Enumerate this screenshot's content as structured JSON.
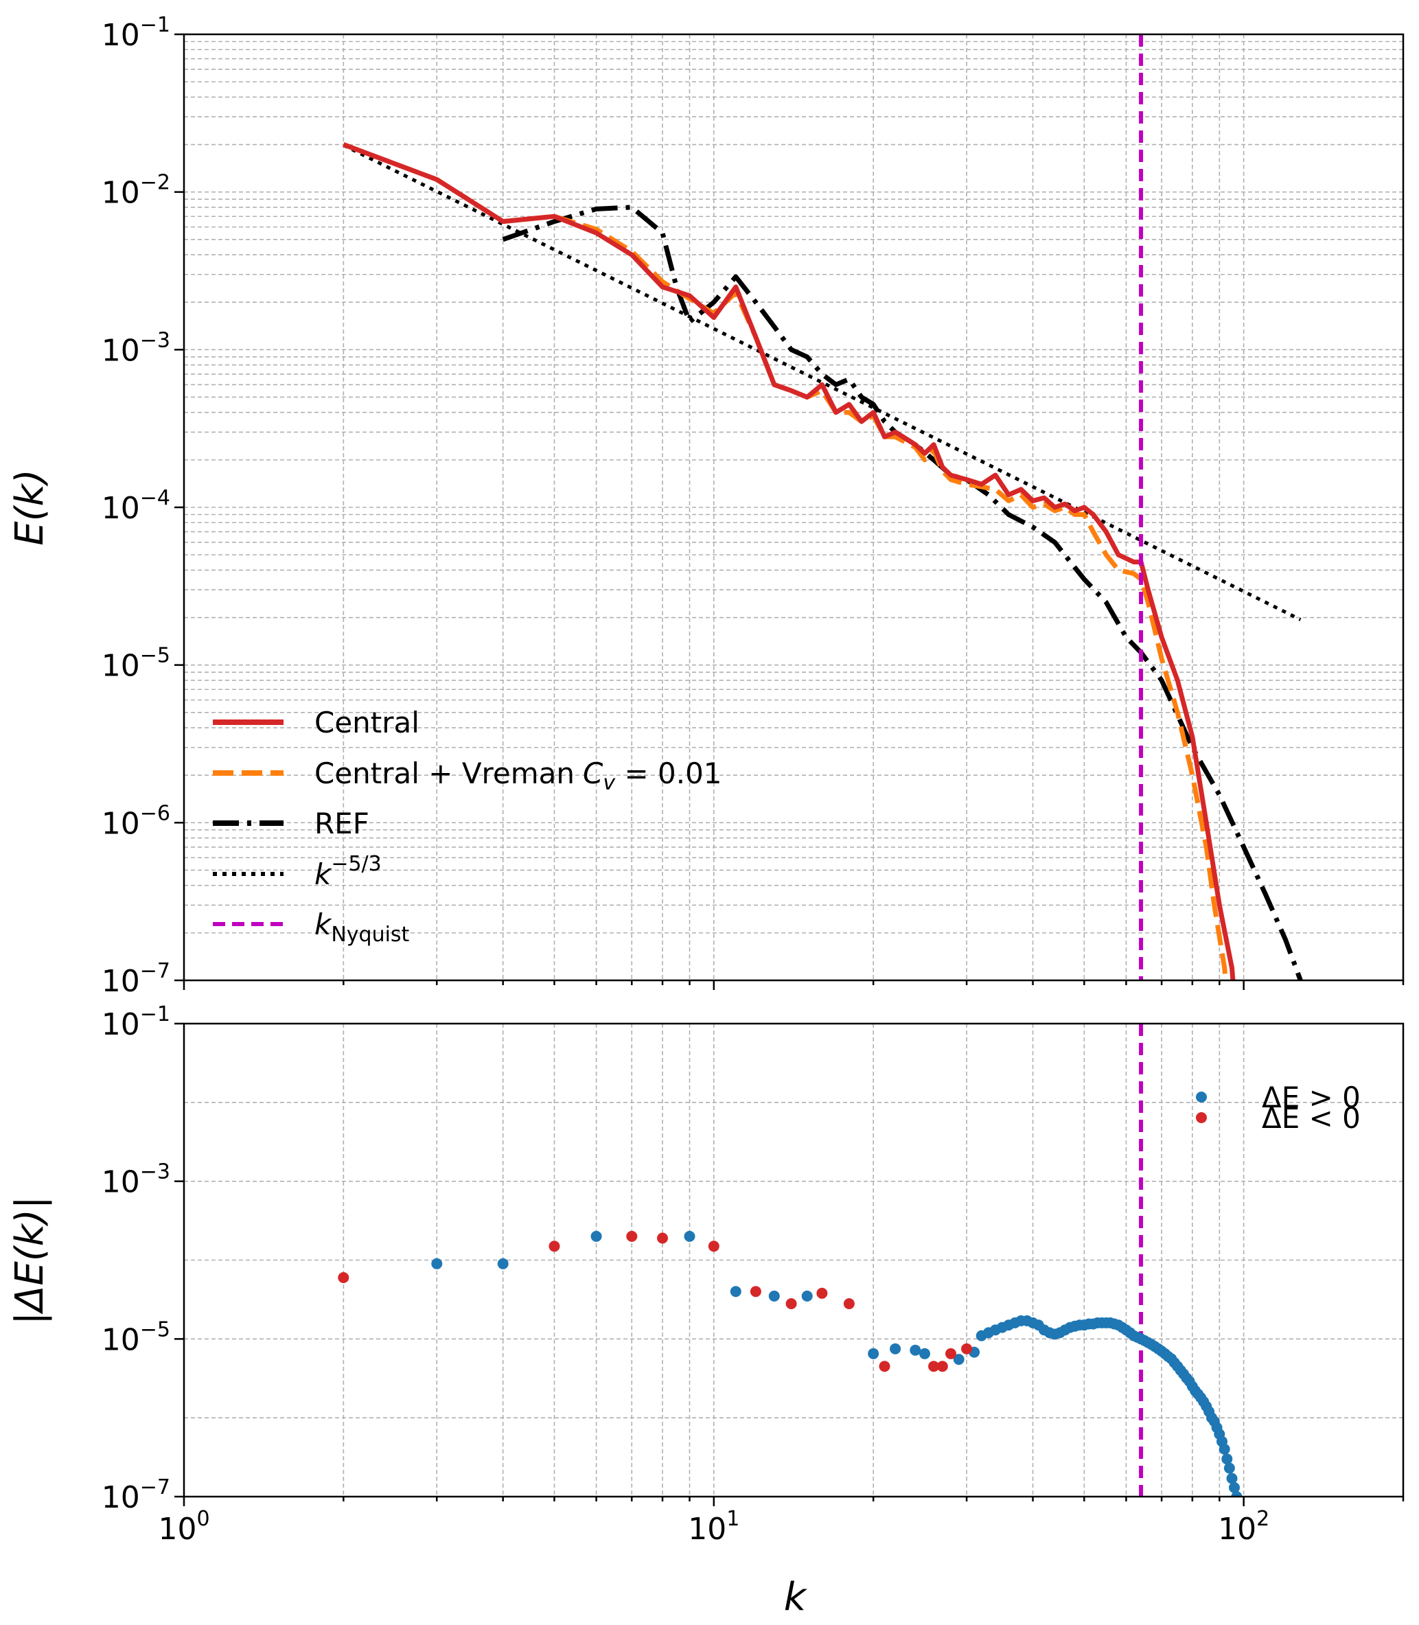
{
  "chart_data": [
    {
      "type": "line",
      "title": "",
      "xlabel": "k",
      "ylabel": "E(k)",
      "xscale": "log",
      "yscale": "log",
      "xlim": [
        1,
        200
      ],
      "ylim": [
        1e-07,
        0.1
      ],
      "grid": true,
      "legend_position": "lower-left",
      "y_ticks": [
        {
          "value": 1e-07,
          "base": "10",
          "exp": "−7"
        },
        {
          "value": 1e-06,
          "base": "10",
          "exp": "−6"
        },
        {
          "value": 1e-05,
          "base": "10",
          "exp": "−5"
        },
        {
          "value": 0.0001,
          "base": "10",
          "exp": "−4"
        },
        {
          "value": 0.001,
          "base": "10",
          "exp": "−3"
        },
        {
          "value": 0.01,
          "base": "10",
          "exp": "−2"
        },
        {
          "value": 0.1,
          "base": "10",
          "exp": "−1"
        }
      ],
      "series": [
        {
          "name": "Central",
          "color": "#d62728",
          "style": "solid",
          "points": [
            [
              2,
              0.02
            ],
            [
              3,
              0.012
            ],
            [
              4,
              0.0065
            ],
            [
              5,
              0.007
            ],
            [
              6,
              0.0055
            ],
            [
              7,
              0.004
            ],
            [
              8,
              0.0025
            ],
            [
              9,
              0.0022
            ],
            [
              10,
              0.0016
            ],
            [
              11,
              0.0025
            ],
            [
              12,
              0.0012
            ],
            [
              13,
              0.0006
            ],
            [
              14,
              0.00055
            ],
            [
              15,
              0.0005
            ],
            [
              16,
              0.0006
            ],
            [
              17,
              0.0004
            ],
            [
              18,
              0.00045
            ],
            [
              19,
              0.00035
            ],
            [
              20,
              0.0004
            ],
            [
              21,
              0.00028
            ],
            [
              22,
              0.0003
            ],
            [
              24,
              0.00025
            ],
            [
              25,
              0.00022
            ],
            [
              26,
              0.00025
            ],
            [
              27,
              0.00018
            ],
            [
              28,
              0.00016
            ],
            [
              30,
              0.00015
            ],
            [
              32,
              0.00014
            ],
            [
              34,
              0.00016
            ],
            [
              36,
              0.00012
            ],
            [
              38,
              0.00013
            ],
            [
              40,
              0.00011
            ],
            [
              42,
              0.000115
            ],
            [
              44,
              0.0001
            ],
            [
              46,
              0.000105
            ],
            [
              48,
              9.5e-05
            ],
            [
              50,
              0.0001
            ],
            [
              52,
              9e-05
            ],
            [
              55,
              7e-05
            ],
            [
              58,
              5e-05
            ],
            [
              62,
              4.5e-05
            ],
            [
              64,
              4.5e-05
            ],
            [
              66,
              3e-05
            ],
            [
              70,
              1.5e-05
            ],
            [
              75,
              8e-06
            ],
            [
              80,
              3.5e-06
            ],
            [
              85,
              1e-06
            ],
            [
              90,
              3e-07
            ],
            [
              95,
              1.2e-07
            ],
            [
              97,
              5e-08
            ]
          ]
        },
        {
          "name": "Central + Vreman",
          "name_sub": "v",
          "name_suffix": " = 0.01",
          "color": "#ff7f0e",
          "style": "dashed",
          "points": [
            [
              2,
              0.02
            ],
            [
              3,
              0.012
            ],
            [
              4,
              0.0065
            ],
            [
              5,
              0.007
            ],
            [
              6,
              0.0058
            ],
            [
              7,
              0.0042
            ],
            [
              8,
              0.0027
            ],
            [
              9,
              0.0021
            ],
            [
              10,
              0.0017
            ],
            [
              11,
              0.0023
            ],
            [
              12,
              0.0012
            ],
            [
              13,
              0.0006
            ],
            [
              14,
              0.00055
            ],
            [
              15,
              0.0005
            ],
            [
              16,
              0.00055
            ],
            [
              17,
              0.0004
            ],
            [
              18,
              0.0004
            ],
            [
              19,
              0.00035
            ],
            [
              20,
              0.00038
            ],
            [
              21,
              0.00028
            ],
            [
              22,
              0.00028
            ],
            [
              24,
              0.00024
            ],
            [
              25,
              0.0002
            ],
            [
              26,
              0.00023
            ],
            [
              27,
              0.00017
            ],
            [
              28,
              0.00015
            ],
            [
              30,
              0.00014
            ],
            [
              32,
              0.000135
            ],
            [
              34,
              0.00013
            ],
            [
              36,
              0.00011
            ],
            [
              38,
              0.00012
            ],
            [
              40,
              0.0001
            ],
            [
              42,
              0.000105
            ],
            [
              44,
              9.5e-05
            ],
            [
              46,
              0.0001
            ],
            [
              48,
              9e-05
            ],
            [
              50,
              9e-05
            ],
            [
              52,
              7e-05
            ],
            [
              55,
              5e-05
            ],
            [
              58,
              4e-05
            ],
            [
              62,
              3.8e-05
            ],
            [
              64,
              3.5e-05
            ],
            [
              66,
              2.5e-05
            ],
            [
              70,
              1.1e-05
            ],
            [
              75,
              5e-06
            ],
            [
              80,
              2e-06
            ],
            [
              85,
              7e-07
            ],
            [
              88,
              3e-07
            ],
            [
              92,
              1.2e-07
            ],
            [
              94,
              5e-08
            ]
          ]
        },
        {
          "name": "REF",
          "color": "#000000",
          "style": "dashdot",
          "points": [
            [
              4,
              0.005
            ],
            [
              5,
              0.0065
            ],
            [
              6,
              0.0078
            ],
            [
              7,
              0.008
            ],
            [
              8,
              0.0055
            ],
            [
              8.5,
              0.0025
            ],
            [
              9,
              0.0015
            ],
            [
              10,
              0.002
            ],
            [
              11,
              0.0029
            ],
            [
              12,
              0.002
            ],
            [
              13,
              0.0014
            ],
            [
              14,
              0.001
            ],
            [
              15,
              0.0009
            ],
            [
              16,
              0.0007
            ],
            [
              17,
              0.0006
            ],
            [
              18,
              0.00065
            ],
            [
              19,
              0.0005
            ],
            [
              20,
              0.00045
            ],
            [
              21,
              0.00035
            ],
            [
              22,
              0.0003
            ],
            [
              24,
              0.00025
            ],
            [
              26,
              0.0002
            ],
            [
              28,
              0.00016
            ],
            [
              30,
              0.00015
            ],
            [
              33,
              0.00012
            ],
            [
              36,
              9e-05
            ],
            [
              40,
              7.5e-05
            ],
            [
              44,
              6e-05
            ],
            [
              50,
              3.5e-05
            ],
            [
              55,
              2.5e-05
            ],
            [
              60,
              1.5e-05
            ],
            [
              64,
              1.2e-05
            ],
            [
              70,
              8e-06
            ],
            [
              80,
              3e-06
            ],
            [
              90,
              1.5e-06
            ],
            [
              100,
              7e-07
            ],
            [
              110,
              3.5e-07
            ],
            [
              120,
              1.8e-07
            ],
            [
              128,
              1e-07
            ]
          ]
        },
        {
          "name": "k",
          "name_sup": "−5/3",
          "color": "#000000",
          "style": "dotted",
          "points": [
            [
              2,
              0.0198
            ],
            [
              4,
              0.00624
            ],
            [
              8,
              0.00197
            ],
            [
              16,
              0.00062
            ],
            [
              32,
              0.000196
            ],
            [
              64,
              6.17e-05
            ],
            [
              128,
              1.94e-05
            ]
          ]
        }
      ],
      "vline": {
        "name": "k",
        "name_sub": "Nyquist",
        "x": 64,
        "color": "#c000c0",
        "style": "dashed"
      },
      "legend_labels": [
        "Central",
        "Central + Vreman",
        "REF",
        "k",
        "k"
      ]
    },
    {
      "type": "scatter",
      "title": "",
      "xlabel": "k",
      "ylabel": "|ΔE(k)|",
      "xscale": "log",
      "yscale": "log",
      "xlim": [
        1,
        200
      ],
      "ylim": [
        1e-07,
        0.1
      ],
      "grid": true,
      "legend_position": "top-right",
      "x_ticks": [
        {
          "value": 1,
          "base": "10",
          "exp": "0"
        },
        {
          "value": 10,
          "base": "10",
          "exp": "1"
        },
        {
          "value": 100,
          "base": "10",
          "exp": "2"
        }
      ],
      "y_ticks": [
        {
          "value": 1e-07,
          "base": "10",
          "exp": "−7"
        },
        {
          "value": 1e-05,
          "base": "10",
          "exp": "−5"
        },
        {
          "value": 0.001,
          "base": "10",
          "exp": "−3"
        },
        {
          "value": 0.1,
          "base": "10",
          "exp": "−1"
        }
      ],
      "series": [
        {
          "name": "ΔE > 0",
          "color": "#1f77b4",
          "points": [
            [
              3,
              9e-05
            ],
            [
              4,
              9e-05
            ],
            [
              6,
              0.0002
            ],
            [
              9,
              0.0002
            ],
            [
              11,
              4e-05
            ],
            [
              13,
              3.5e-05
            ],
            [
              15,
              3.5e-05
            ],
            [
              20,
              6.5e-06
            ],
            [
              22,
              7.5e-06
            ],
            [
              24,
              7.2e-06
            ],
            [
              25,
              6.5e-06
            ],
            [
              29,
              5.5e-06
            ],
            [
              31,
              6.8e-06
            ],
            [
              32,
              1.1e-05
            ],
            [
              33,
              1.2e-05
            ],
            [
              34,
              1.3e-05
            ],
            [
              35,
              1.4e-05
            ],
            [
              36,
              1.5e-05
            ],
            [
              37,
              1.6e-05
            ],
            [
              38,
              1.7e-05
            ],
            [
              39,
              1.7e-05
            ],
            [
              40,
              1.6e-05
            ],
            [
              41,
              1.5e-05
            ],
            [
              42,
              1.3e-05
            ],
            [
              43,
              1.2e-05
            ],
            [
              44,
              1.15e-05
            ],
            [
              45,
              1.2e-05
            ],
            [
              46,
              1.3e-05
            ],
            [
              47,
              1.4e-05
            ],
            [
              48,
              1.45e-05
            ],
            [
              49,
              1.5e-05
            ],
            [
              50,
              1.5e-05
            ],
            [
              51,
              1.55e-05
            ],
            [
              52,
              1.55e-05
            ],
            [
              53,
              1.6e-05
            ],
            [
              54,
              1.6e-05
            ],
            [
              55,
              1.6e-05
            ],
            [
              56,
              1.6e-05
            ],
            [
              57,
              1.55e-05
            ],
            [
              58,
              1.5e-05
            ],
            [
              59,
              1.4e-05
            ],
            [
              60,
              1.3e-05
            ],
            [
              61,
              1.2e-05
            ],
            [
              62,
              1.1e-05
            ],
            [
              63,
              1.05e-05
            ],
            [
              64,
              1e-05
            ],
            [
              65,
              9.5e-06
            ],
            [
              66,
              9e-06
            ],
            [
              67,
              8.5e-06
            ],
            [
              68,
              8e-06
            ],
            [
              69,
              7.5e-06
            ],
            [
              70,
              7e-06
            ],
            [
              71,
              6.5e-06
            ],
            [
              72,
              6e-06
            ],
            [
              73,
              5.6e-06
            ],
            [
              74,
              5e-06
            ],
            [
              75,
              4.5e-06
            ],
            [
              76,
              4e-06
            ],
            [
              77,
              3.6e-06
            ],
            [
              78,
              3.2e-06
            ],
            [
              79,
              2.9e-06
            ],
            [
              80,
              2.5e-06
            ],
            [
              81,
              2.2e-06
            ],
            [
              82,
              2e-06
            ],
            [
              83,
              1.8e-06
            ],
            [
              84,
              1.6e-06
            ],
            [
              85,
              1.4e-06
            ],
            [
              86,
              1.2e-06
            ],
            [
              87,
              1e-06
            ],
            [
              88,
              9e-07
            ],
            [
              89,
              7.5e-07
            ],
            [
              90,
              6.2e-07
            ],
            [
              91,
              5e-07
            ],
            [
              92,
              4e-07
            ],
            [
              93,
              3e-07
            ],
            [
              94,
              2.3e-07
            ],
            [
              95,
              1.7e-07
            ],
            [
              96,
              1.3e-07
            ],
            [
              97,
              1e-07
            ]
          ]
        },
        {
          "name": "ΔE < 0",
          "color": "#d62728",
          "points": [
            [
              2,
              6e-05
            ],
            [
              5,
              0.00015
            ],
            [
              7,
              0.0002
            ],
            [
              8,
              0.00019
            ],
            [
              10,
              0.00015
            ],
            [
              12,
              4e-05
            ],
            [
              14,
              2.8e-05
            ],
            [
              16,
              3.8e-05
            ],
            [
              18,
              2.8e-05
            ],
            [
              21,
              4.5e-06
            ],
            [
              26,
              4.5e-06
            ],
            [
              27,
              4.5e-06
            ],
            [
              28,
              6.5e-06
            ],
            [
              30,
              7.5e-06
            ]
          ]
        }
      ],
      "vline": {
        "x": 64,
        "color": "#c000c0",
        "style": "dashed"
      }
    }
  ]
}
